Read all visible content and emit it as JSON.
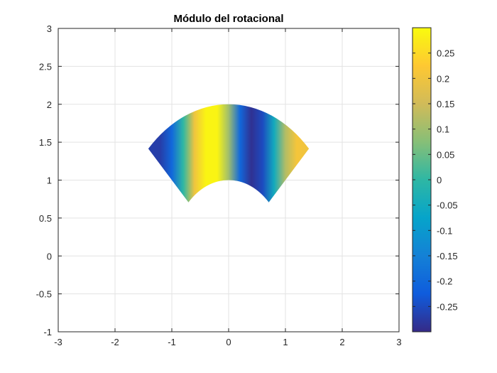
{
  "chart_data": {
    "type": "heatmap",
    "title": "Módulo del rotacional",
    "xlim": [
      -3,
      3
    ],
    "ylim": [
      -1,
      3
    ],
    "xticks": [
      -3,
      -2,
      -1,
      0,
      1,
      2,
      3
    ],
    "xtick_labels": [
      "-3",
      "-2",
      "-1",
      "0",
      "1",
      "2",
      "3"
    ],
    "yticks": [
      -1,
      -0.5,
      0,
      0.5,
      1,
      1.5,
      2,
      2.5,
      3
    ],
    "ytick_labels": [
      "-1",
      "-0.5",
      "0",
      "0.5",
      "1",
      "1.5",
      "2",
      "2.5",
      "3"
    ],
    "grid": true,
    "region": {
      "shape": "annular-sector",
      "inner_radius": 1,
      "outer_radius": 2,
      "theta_start_deg": 45,
      "theta_end_deg": 135
    },
    "field_profile": {
      "description_variable": "x",
      "x": [
        -1.41,
        -1.2,
        -1.0,
        -0.8,
        -0.6,
        -0.4,
        -0.2,
        0.0,
        0.2,
        0.4,
        0.6,
        0.8,
        1.0,
        1.2,
        1.41
      ],
      "values": [
        -0.27,
        -0.27,
        -0.2,
        0.0,
        0.2,
        0.29,
        0.29,
        0.1,
        -0.2,
        -0.29,
        -0.25,
        -0.05,
        0.12,
        0.21,
        0.2
      ]
    },
    "colorbar": {
      "colormap": "parula",
      "location": "right",
      "clim": [
        -0.3,
        0.3
      ],
      "ticks": [
        0.25,
        0.2,
        0.15,
        0.1,
        0.05,
        0,
        -0.05,
        -0.1,
        -0.15,
        -0.2,
        -0.25
      ],
      "tick_labels": [
        "0.25",
        "0.2",
        "0.15",
        "0.1",
        "0.05",
        "0",
        "-0.05",
        "-0.1",
        "-0.15",
        "-0.2",
        "-0.25"
      ],
      "colors": [
        "#352a87",
        "#0f5cdd",
        "#1481d6",
        "#06a4ca",
        "#2eb7a4",
        "#87bf77",
        "#d1bb59",
        "#fec832",
        "#f9fb0e"
      ]
    }
  }
}
